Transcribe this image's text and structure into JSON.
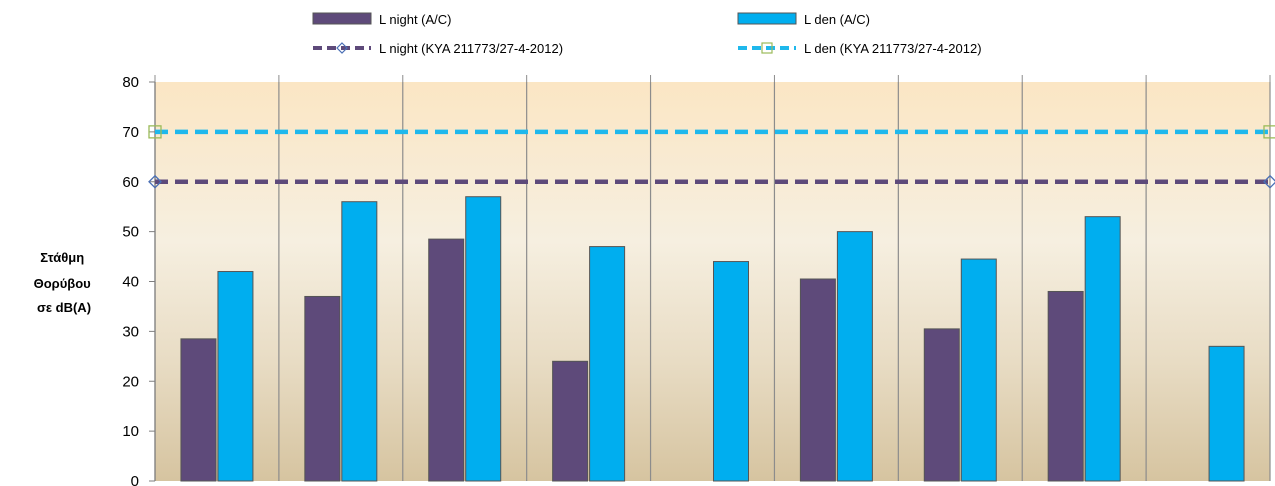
{
  "chart_data": {
    "type": "bar",
    "title": "",
    "ylabel_lines": [
      "Στάθμη",
      "Θορύβου",
      "σε dB(A)"
    ],
    "ylim": [
      0,
      80
    ],
    "yticks": [
      0,
      10,
      20,
      30,
      40,
      50,
      60,
      70,
      80
    ],
    "grid": "vertical",
    "legend_position": "top",
    "categories": [
      "",
      "",
      "",
      "",
      "",
      "",
      "",
      "",
      ""
    ],
    "series": [
      {
        "name": "L night (A/C)",
        "kind": "bar",
        "color": "#5e4a7a",
        "values": [
          28.5,
          37,
          48.5,
          24,
          null,
          40.5,
          30.5,
          38,
          null
        ]
      },
      {
        "name": "L den (A/C)",
        "kind": "bar",
        "color": "#00aeef",
        "values": [
          42,
          56,
          57,
          47,
          44,
          50,
          44.5,
          53,
          27
        ]
      },
      {
        "name": "L night (KYA 211773/27-4-2012)",
        "kind": "line",
        "color": "#5e4a7a",
        "marker": "diamond",
        "value": 60
      },
      {
        "name": "L den (KYA 211773/27-4-2012)",
        "kind": "line",
        "color": "#1fb8ec",
        "marker": "square",
        "value": 70
      }
    ]
  }
}
